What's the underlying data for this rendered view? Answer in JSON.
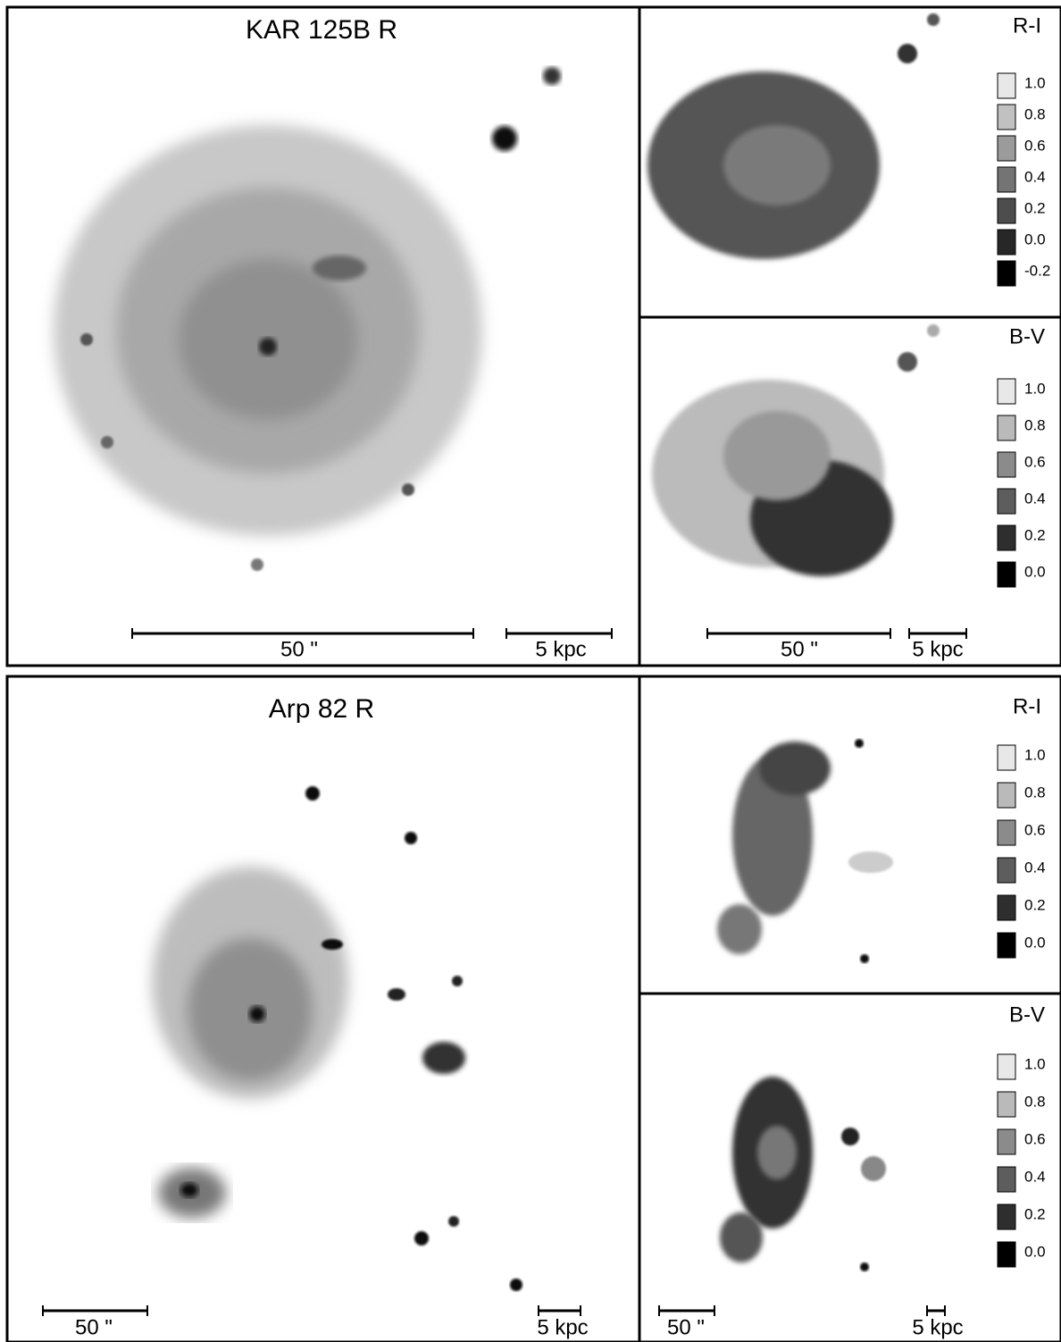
{
  "figures": [
    {
      "image": {
        "title": "KAR 125B R",
        "scale_bars": [
          "50 \"",
          "5 kpc"
        ]
      },
      "color_maps": [
        {
          "title": "R-I",
          "legend": [
            "1.0",
            "0.8",
            "0.6",
            "0.4",
            "0.2",
            "0.0",
            "-0.2"
          ],
          "scale_bars": []
        },
        {
          "title": "B-V",
          "legend": [
            "1.0",
            "0.8",
            "0.6",
            "0.4",
            "0.2",
            "0.0"
          ],
          "scale_bars": [
            "50 \"",
            "5 kpc"
          ]
        }
      ]
    },
    {
      "image": {
        "title": "Arp 82 R",
        "scale_bars": [
          "50 \"",
          "5 kpc"
        ]
      },
      "color_maps": [
        {
          "title": "R-I",
          "legend": [
            "1.0",
            "0.8",
            "0.6",
            "0.4",
            "0.2",
            "0.0"
          ],
          "scale_bars": []
        },
        {
          "title": "B-V",
          "legend": [
            "1.0",
            "0.8",
            "0.6",
            "0.4",
            "0.2",
            "0.0"
          ],
          "scale_bars": [
            "50 \"",
            "5 kpc"
          ]
        }
      ]
    }
  ]
}
